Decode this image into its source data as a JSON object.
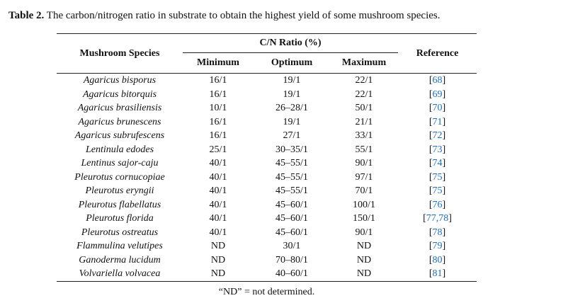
{
  "caption": {
    "label": "Table 2.",
    "text": " The carbon/nitrogen ratio in substrate to obtain the highest yield of some mushroom species."
  },
  "table": {
    "headers": {
      "species": "Mushroom Species",
      "ratio_group": "C/N Ratio (%)",
      "minimum": "Minimum",
      "optimum": "Optimum",
      "maximum": "Maximum",
      "reference": "Reference"
    },
    "rows": [
      {
        "species": "Agaricus bisporus",
        "minimum": "16/1",
        "optimum": "19/1",
        "maximum": "22/1",
        "ref": "68"
      },
      {
        "species": "Agaricus bitorquis",
        "minimum": "16/1",
        "optimum": "19/1",
        "maximum": "22/1",
        "ref": "69"
      },
      {
        "species": "Agaricus brasiliensis",
        "minimum": "10/1",
        "optimum": "26–28/1",
        "maximum": "50/1",
        "ref": "70"
      },
      {
        "species": "Agaricus brunescens",
        "minimum": "16/1",
        "optimum": "19/1",
        "maximum": "21/1",
        "ref": "71"
      },
      {
        "species": "Agaricus subrufescens",
        "minimum": "16/1",
        "optimum": "27/1",
        "maximum": "33/1",
        "ref": "72"
      },
      {
        "species": "Lentinula edodes",
        "minimum": "25/1",
        "optimum": "30–35/1",
        "maximum": "55/1",
        "ref": "73"
      },
      {
        "species": "Lentinus sajor-caju",
        "minimum": "40/1",
        "optimum": "45–55/1",
        "maximum": "90/1",
        "ref": "74"
      },
      {
        "species": "Pleurotus cornucopiae",
        "minimum": "40/1",
        "optimum": "45–55/1",
        "maximum": "97/1",
        "ref": "75"
      },
      {
        "species": "Pleurotus eryngii",
        "minimum": "40/1",
        "optimum": "45–55/1",
        "maximum": "70/1",
        "ref": "75"
      },
      {
        "species": "Pleurotus flabellatus",
        "minimum": "40/1",
        "optimum": "45–60/1",
        "maximum": "100/1",
        "ref": "76"
      },
      {
        "species": "Pleurotus florida",
        "minimum": "40/1",
        "optimum": "45–60/1",
        "maximum": "150/1",
        "ref": "77,78"
      },
      {
        "species": "Pleurotus ostreatus",
        "minimum": "40/1",
        "optimum": "45–60/1",
        "maximum": "90/1",
        "ref": "78"
      },
      {
        "species": "Flammulina velutipes",
        "minimum": "ND",
        "optimum": "30/1",
        "maximum": "ND",
        "ref": "79"
      },
      {
        "species": "Ganoderma lucidum",
        "minimum": "ND",
        "optimum": "70–80/1",
        "maximum": "ND",
        "ref": "80"
      },
      {
        "species": "Volvariella volvacea",
        "minimum": "ND",
        "optimum": "40–60/1",
        "maximum": "ND",
        "ref": "81"
      }
    ]
  },
  "footnote": "“ND” = not determined.",
  "colors": {
    "reference_link": "#1a6fbf",
    "text": "#111111",
    "rule": "#222222"
  }
}
